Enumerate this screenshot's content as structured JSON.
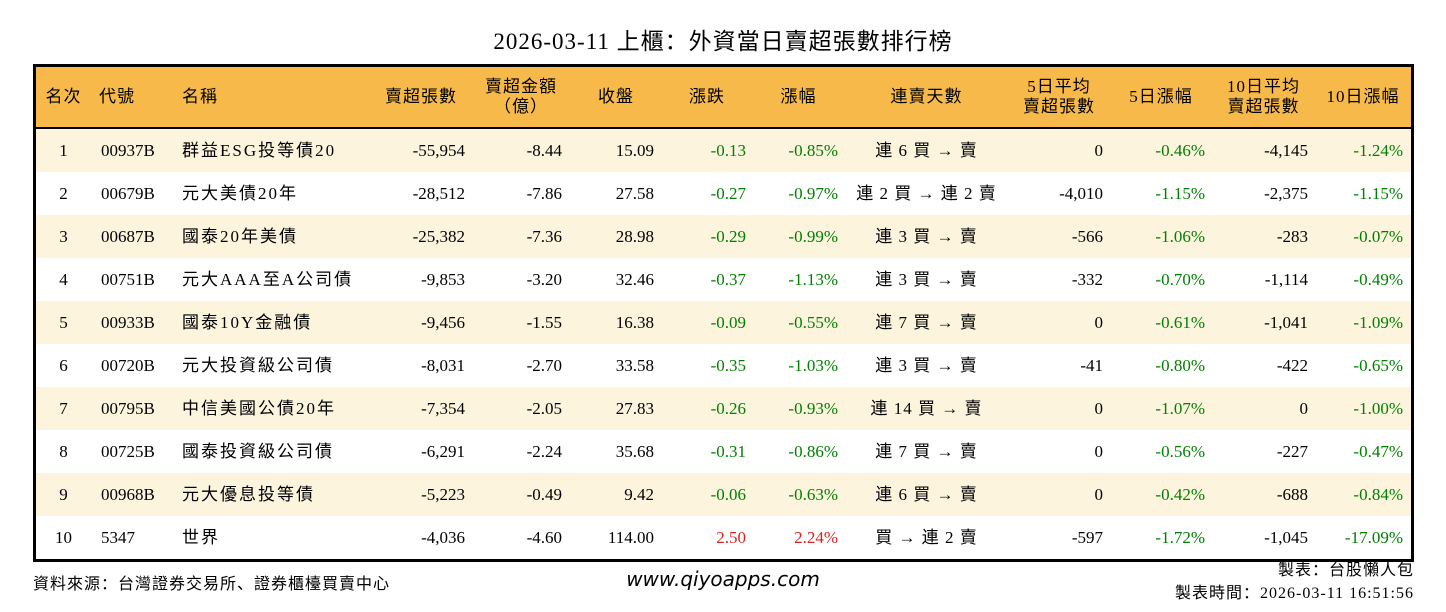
{
  "title": "2026-03-11 上櫃：外資當日賣超張數排行榜",
  "colors": {
    "header_bg": "#F7BA4A",
    "row_alt_bg": "#FCF4DD",
    "down_green": "#008000",
    "up_red": "#E02020",
    "border": "#000000"
  },
  "chart_data": {
    "type": "table",
    "title": "2026-03-11 上櫃：外資當日賣超張數排行榜",
    "columns": [
      "名次",
      "代號",
      "名稱",
      "賣超張數",
      "賣超金額（億）",
      "收盤",
      "漲跌",
      "漲幅",
      "連賣天數",
      "5日平均賣超張數",
      "5日漲幅",
      "10日平均賣超張數",
      "10日漲幅"
    ],
    "rows": [
      [
        "1",
        "00937B",
        "群益ESG投等債20",
        "-55,954",
        "-8.44",
        "15.09",
        "-0.13",
        "-0.85%",
        "連 6 買 → 賣",
        "0",
        "-0.46%",
        "-4,145",
        "-1.24%"
      ],
      [
        "2",
        "00679B",
        "元大美債20年",
        "-28,512",
        "-7.86",
        "27.58",
        "-0.27",
        "-0.97%",
        "連 2 買 → 連 2 賣",
        "-4,010",
        "-1.15%",
        "-2,375",
        "-1.15%"
      ],
      [
        "3",
        "00687B",
        "國泰20年美債",
        "-25,382",
        "-7.36",
        "28.98",
        "-0.29",
        "-0.99%",
        "連 3 買 → 賣",
        "-566",
        "-1.06%",
        "-283",
        "-0.07%"
      ],
      [
        "4",
        "00751B",
        "元大AAA至A公司債",
        "-9,853",
        "-3.20",
        "32.46",
        "-0.37",
        "-1.13%",
        "連 3 買 → 賣",
        "-332",
        "-0.70%",
        "-1,114",
        "-0.49%"
      ],
      [
        "5",
        "00933B",
        "國泰10Y金融債",
        "-9,456",
        "-1.55",
        "16.38",
        "-0.09",
        "-0.55%",
        "連 7 買 → 賣",
        "0",
        "-0.61%",
        "-1,041",
        "-1.09%"
      ],
      [
        "6",
        "00720B",
        "元大投資級公司債",
        "-8,031",
        "-2.70",
        "33.58",
        "-0.35",
        "-1.03%",
        "連 3 買 → 賣",
        "-41",
        "-0.80%",
        "-422",
        "-0.65%"
      ],
      [
        "7",
        "00795B",
        "中信美國公債20年",
        "-7,354",
        "-2.05",
        "27.83",
        "-0.26",
        "-0.93%",
        "連 14 買 → 賣",
        "0",
        "-1.07%",
        "0",
        "-1.00%"
      ],
      [
        "8",
        "00725B",
        "國泰投資級公司債",
        "-6,291",
        "-2.24",
        "35.68",
        "-0.31",
        "-0.86%",
        "連 7 買 → 賣",
        "0",
        "-0.56%",
        "-227",
        "-0.47%"
      ],
      [
        "9",
        "00968B",
        "元大優息投等債",
        "-5,223",
        "-0.49",
        "9.42",
        "-0.06",
        "-0.63%",
        "連 6 買 → 賣",
        "0",
        "-0.42%",
        "-688",
        "-0.84%"
      ],
      [
        "10",
        "5347",
        "世界",
        "-4,036",
        "-4.60",
        "114.00",
        "2.50",
        "2.24%",
        "買 → 連 2 賣",
        "-597",
        "-1.72%",
        "-1,045",
        "-17.09%"
      ]
    ]
  },
  "header_lines": [
    [
      "名次"
    ],
    [
      "代號"
    ],
    [
      "名稱"
    ],
    [
      "賣超張數"
    ],
    [
      "賣超金額",
      "（億）"
    ],
    [
      "收盤"
    ],
    [
      "漲跌"
    ],
    [
      "漲幅"
    ],
    [
      "連賣天數"
    ],
    [
      "5日平均",
      "賣超張數"
    ],
    [
      "5日漲幅"
    ],
    [
      "10日平均",
      "賣超張數"
    ],
    [
      "10日漲幅"
    ]
  ],
  "footer": {
    "source": "資料來源：台灣證券交易所、證券櫃檯買賣中心",
    "website": "www.qiyoapps.com",
    "author": "製表：台股懶人包",
    "generated": "製表時間：2026-03-11 16:51:56"
  }
}
